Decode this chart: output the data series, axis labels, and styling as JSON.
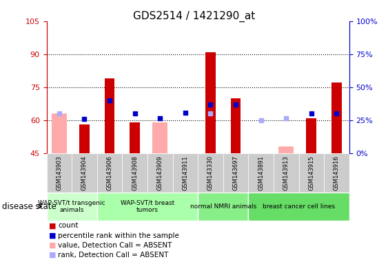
{
  "title": "GDS2514 / 1421290_at",
  "samples": [
    "GSM143903",
    "GSM143904",
    "GSM143906",
    "GSM143908",
    "GSM143909",
    "GSM143911",
    "GSM143330",
    "GSM143697",
    "GSM143891",
    "GSM143913",
    "GSM143915",
    "GSM143916"
  ],
  "count_values": [
    null,
    58,
    79,
    59,
    null,
    null,
    91,
    70,
    null,
    null,
    61,
    77
  ],
  "pink_bars": [
    63,
    null,
    null,
    null,
    59,
    null,
    null,
    null,
    45,
    48,
    null,
    null
  ],
  "blue_squares": [
    null,
    60.5,
    69,
    63,
    61,
    63.5,
    67,
    67,
    null,
    null,
    63,
    63
  ],
  "light_blue_squares": [
    63,
    null,
    null,
    null,
    61,
    null,
    63,
    null,
    60,
    61,
    null,
    null
  ],
  "ylim": [
    45,
    105
  ],
  "yticks": [
    45,
    60,
    75,
    90,
    105
  ],
  "y2lim": [
    0,
    100
  ],
  "y2ticks": [
    0,
    25,
    50,
    75,
    100
  ],
  "y2labels": [
    "0%",
    "25%",
    "50%",
    "75%",
    "100%"
  ],
  "gridlines": [
    60,
    75,
    90
  ],
  "groups": [
    {
      "label": "WAP-SVT/t transgenic\nanimals",
      "start": 0,
      "end": 2,
      "color": "#ccffcc"
    },
    {
      "label": "WAP-SVT/t breast\ntumors",
      "start": 2,
      "end": 6,
      "color": "#aaffaa"
    },
    {
      "label": "normal NMRI animals",
      "start": 6,
      "end": 8,
      "color": "#88ee88"
    },
    {
      "label": "breast cancer cell lines",
      "start": 8,
      "end": 12,
      "color": "#66dd66"
    }
  ],
  "legend_items": [
    {
      "label": "count",
      "color": "#cc0000"
    },
    {
      "label": "percentile rank within the sample",
      "color": "#0000cc"
    },
    {
      "label": "value, Detection Call = ABSENT",
      "color": "#ffaaaa"
    },
    {
      "label": "rank, Detection Call = ABSENT",
      "color": "#aaaaff"
    }
  ],
  "red_color": "#cc0000",
  "pink_color": "#ffaaaa",
  "blue_color": "#0000cc",
  "lblue_color": "#aaaaff",
  "bar_width": 0.4,
  "pink_bar_width": 0.6
}
